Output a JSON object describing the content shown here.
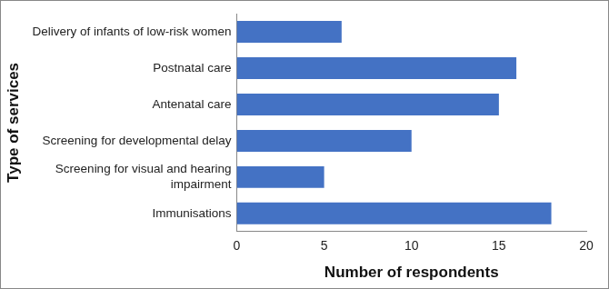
{
  "chart_data": {
    "type": "bar",
    "orientation": "horizontal",
    "categories": [
      "Delivery of infants of low-risk women",
      "Postnatal care",
      "Antenatal care",
      "Screening for developmental delay",
      "Screening for visual and hearing impairment",
      "Immunisations"
    ],
    "values": [
      6,
      16,
      15,
      10,
      5,
      18
    ],
    "color": "#4472c4",
    "x_label": "Number of respondents",
    "y_label": "Type of services",
    "xlim": [
      0,
      20
    ],
    "xticks": [
      0,
      5,
      10,
      15,
      20
    ],
    "grid": false
  }
}
